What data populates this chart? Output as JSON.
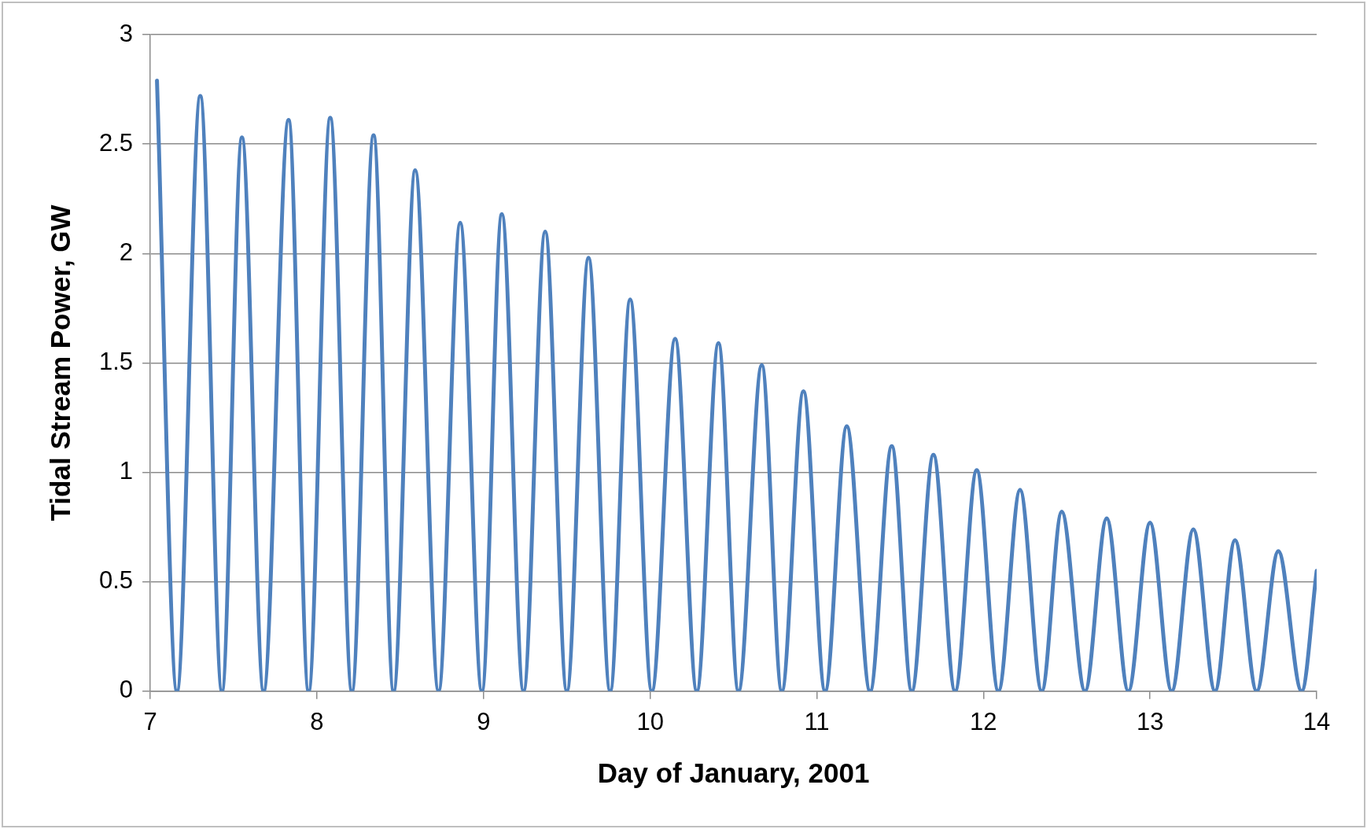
{
  "chart_data": {
    "type": "line",
    "xlabel": "Day of January, 2001",
    "ylabel": "Tidal Stream Power, GW",
    "xlim": [
      7,
      14
    ],
    "xticks": [
      7,
      8,
      9,
      10,
      11,
      12,
      13,
      14
    ],
    "ylim": [
      0,
      3
    ],
    "yticks": [
      0,
      0.5,
      1,
      1.5,
      2,
      2.5,
      3
    ],
    "grid": "y",
    "legend": false,
    "marker": "none",
    "line_style": "solid",
    "series": [
      {
        "color": "#4f81bd",
        "x": [
          7.04,
          7.16,
          7.3,
          7.43,
          7.55,
          7.68,
          7.83,
          7.95,
          8.08,
          8.21,
          8.34,
          8.46,
          8.59,
          8.73,
          8.86,
          8.99,
          9.11,
          9.24,
          9.37,
          9.5,
          9.63,
          9.76,
          9.88,
          10.01,
          10.15,
          10.28,
          10.41,
          10.53,
          10.67,
          10.79,
          10.92,
          11.05,
          11.18,
          11.32,
          11.45,
          11.57,
          11.7,
          11.83,
          11.96,
          12.09,
          12.22,
          12.35,
          12.47,
          12.61,
          12.74,
          12.87,
          13,
          13.13,
          13.26,
          13.39,
          13.51,
          13.64,
          13.77,
          13.91,
          14
        ],
        "values": [
          2.79,
          0,
          2.72,
          0,
          2.53,
          0,
          2.61,
          0,
          2.62,
          0,
          2.54,
          0,
          2.38,
          0,
          2.14,
          0,
          2.18,
          0,
          2.1,
          0,
          1.98,
          0,
          1.79,
          0,
          1.61,
          0,
          1.59,
          0,
          1.49,
          0,
          1.37,
          0,
          1.21,
          0,
          1.12,
          0,
          1.08,
          0,
          1.01,
          0,
          0.92,
          0,
          0.82,
          0,
          0.79,
          0,
          0.77,
          0,
          0.74,
          0,
          0.69,
          0,
          0.64,
          0,
          0.55
        ]
      }
    ]
  }
}
